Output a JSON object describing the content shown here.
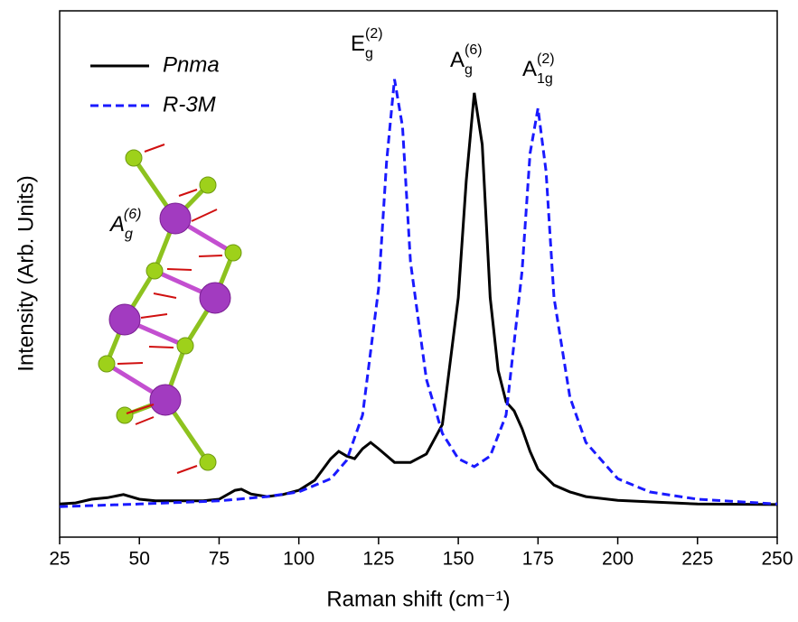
{
  "chart_data": {
    "type": "line",
    "xlabel": "Raman shift (cm⁻¹)",
    "ylabel": "Intensity (Arb. Units)",
    "xlim": [
      25,
      250
    ],
    "xticks": [
      25,
      50,
      75,
      100,
      125,
      150,
      175,
      200,
      225,
      250
    ],
    "ylim": [
      0,
      1
    ],
    "legend": "upper left",
    "series": [
      {
        "name": "Pnma",
        "color": "#000000",
        "dash": false,
        "x": [
          25,
          30,
          35,
          40,
          45,
          50,
          55,
          60,
          65,
          70,
          75,
          80,
          82,
          85,
          90,
          95,
          100,
          105,
          110,
          112.5,
          115,
          117.5,
          120,
          122.5,
          125,
          130,
          135,
          140,
          145,
          150,
          152.5,
          155,
          157.5,
          160,
          162.5,
          165,
          167.5,
          170,
          172.5,
          175,
          180,
          185,
          190,
          200,
          210,
          225,
          250
        ],
        "values": [
          0.063,
          0.065,
          0.072,
          0.075,
          0.081,
          0.072,
          0.069,
          0.069,
          0.069,
          0.069,
          0.072,
          0.089,
          0.091,
          0.082,
          0.077,
          0.081,
          0.089,
          0.108,
          0.149,
          0.163,
          0.154,
          0.149,
          0.168,
          0.18,
          0.168,
          0.142,
          0.142,
          0.158,
          0.214,
          0.455,
          0.677,
          0.844,
          0.746,
          0.455,
          0.317,
          0.257,
          0.24,
          0.206,
          0.163,
          0.129,
          0.099,
          0.086,
          0.077,
          0.07,
          0.067,
          0.063,
          0.062
        ]
      },
      {
        "name": "R-3M",
        "color": "#1a1aff",
        "dash": true,
        "x": [
          25,
          50,
          75,
          90,
          100,
          110,
          115,
          120,
          125,
          127.5,
          130,
          132.5,
          135,
          140,
          145,
          150,
          155,
          160,
          165,
          170,
          172.5,
          175,
          177.5,
          180,
          185,
          190,
          200,
          210,
          225,
          250
        ],
        "values": [
          0.058,
          0.063,
          0.069,
          0.077,
          0.086,
          0.111,
          0.146,
          0.232,
          0.472,
          0.712,
          0.87,
          0.78,
          0.523,
          0.3,
          0.197,
          0.149,
          0.134,
          0.154,
          0.232,
          0.506,
          0.729,
          0.815,
          0.695,
          0.455,
          0.266,
          0.18,
          0.111,
          0.086,
          0.072,
          0.063
        ]
      }
    ],
    "annotations": [
      {
        "text": "E",
        "sub": "g",
        "sup": "(2)",
        "color": "#1a1aff"
      },
      {
        "text": "A",
        "sub": "g",
        "sup": "(6)",
        "color": "#000000"
      },
      {
        "text": "A",
        "sub": "1g",
        "sup": "(2)",
        "color": "#1a1aff"
      }
    ],
    "inset_label": {
      "text": "A",
      "sub": "g",
      "sup": "(6)"
    }
  }
}
